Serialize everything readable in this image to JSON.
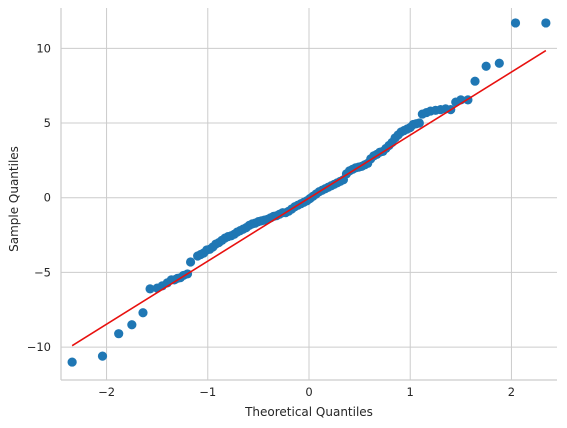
{
  "chart_data": {
    "type": "scatter",
    "title": "",
    "xlabel": "Theoretical Quantiles",
    "ylabel": "Sample Quantiles",
    "xlim": [
      -2.45,
      2.45
    ],
    "ylim": [
      -12.2,
      12.7
    ],
    "grid": true,
    "x_ticks": [
      -2,
      -1,
      0,
      1,
      2
    ],
    "y_ticks": [
      -10,
      -5,
      0,
      5,
      10
    ],
    "x_tick_labels": [
      "−2",
      "−1",
      "0",
      "1",
      "2"
    ],
    "y_tick_labels": [
      "−10",
      "−5",
      "0",
      "5",
      "10"
    ],
    "colors": {
      "points": "#1f77b4",
      "line": "#e8110f",
      "grid": "#cccccc",
      "spine": "#cccccc"
    },
    "reference_line": {
      "x": [
        -2.34,
        2.34
      ],
      "y": [
        -9.9,
        9.85
      ]
    },
    "points": {
      "x": [
        -2.34,
        -2.04,
        -1.88,
        -1.75,
        -1.64,
        -1.57,
        -1.5,
        -1.45,
        -1.4,
        -1.36,
        -1.33,
        -1.3,
        -1.27,
        -1.24,
        -1.2,
        -1.17,
        -1.1,
        -1.07,
        -1.04,
        -1.01,
        -0.98,
        -0.95,
        -0.92,
        -0.89,
        -0.86,
        -0.83,
        -0.8,
        -0.77,
        -0.74,
        -0.71,
        -0.68,
        -0.65,
        -0.62,
        -0.59,
        -0.56,
        -0.53,
        -0.5,
        -0.47,
        -0.44,
        -0.41,
        -0.38,
        -0.35,
        -0.32,
        -0.29,
        -0.26,
        -0.23,
        -0.2,
        -0.17,
        -0.14,
        -0.11,
        -0.08,
        -0.05,
        -0.02,
        0.01,
        0.04,
        0.07,
        0.1,
        0.13,
        0.16,
        0.19,
        0.22,
        0.25,
        0.28,
        0.31,
        0.34,
        0.37,
        0.4,
        0.43,
        0.46,
        0.49,
        0.52,
        0.55,
        0.58,
        0.61,
        0.64,
        0.67,
        0.7,
        0.73,
        0.76,
        0.79,
        0.82,
        0.85,
        0.88,
        0.91,
        0.94,
        0.97,
        1.0,
        1.03,
        1.06,
        1.09,
        1.12,
        1.16,
        1.2,
        1.25,
        1.3,
        1.35,
        1.4,
        1.45,
        1.5,
        1.57,
        1.64,
        1.75,
        1.88,
        2.04,
        2.34
      ],
      "y": [
        -11.0,
        -10.6,
        -9.1,
        -8.5,
        -7.7,
        -6.1,
        -6.05,
        -5.9,
        -5.7,
        -5.5,
        -5.5,
        -5.4,
        -5.35,
        -5.2,
        -5.1,
        -4.3,
        -3.9,
        -3.8,
        -3.7,
        -3.5,
        -3.45,
        -3.3,
        -3.1,
        -3.0,
        -2.85,
        -2.7,
        -2.6,
        -2.55,
        -2.45,
        -2.3,
        -2.2,
        -2.1,
        -2.0,
        -1.85,
        -1.75,
        -1.7,
        -1.6,
        -1.55,
        -1.5,
        -1.45,
        -1.35,
        -1.25,
        -1.2,
        -1.1,
        -1.0,
        -1.0,
        -0.9,
        -0.75,
        -0.6,
        -0.5,
        -0.4,
        -0.3,
        -0.2,
        -0.05,
        0.1,
        0.25,
        0.4,
        0.5,
        0.6,
        0.7,
        0.8,
        0.9,
        1.0,
        1.1,
        1.2,
        1.6,
        1.8,
        1.9,
        2.0,
        2.05,
        2.1,
        2.2,
        2.3,
        2.6,
        2.8,
        2.9,
        3.05,
        3.1,
        3.3,
        3.5,
        3.7,
        4.0,
        4.2,
        4.4,
        4.5,
        4.6,
        4.7,
        4.9,
        4.95,
        5.0,
        5.6,
        5.7,
        5.8,
        5.85,
        5.9,
        5.95,
        5.9,
        6.4,
        6.55,
        6.55,
        7.8,
        8.8,
        9.0,
        11.7,
        11.7
      ]
    }
  }
}
